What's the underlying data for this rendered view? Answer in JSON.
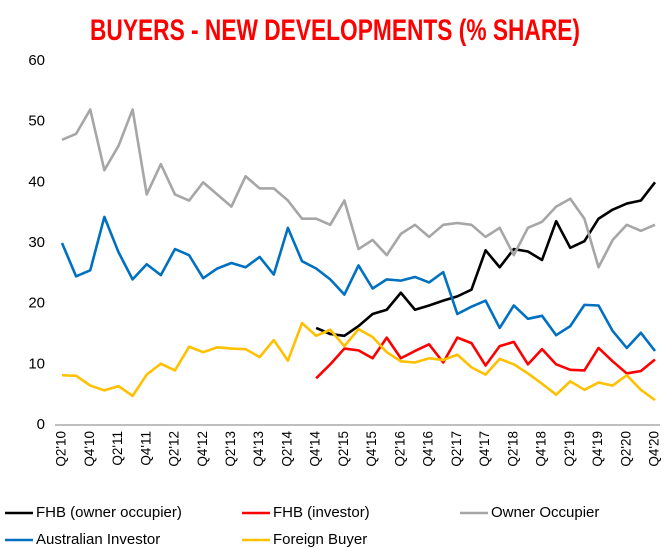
{
  "chart_data": {
    "type": "line",
    "title": "BUYERS - NEW DEVELOPMENTS (% SHARE)",
    "categories": [
      "Q2'10",
      null,
      "Q4'10",
      null,
      "Q2'11",
      null,
      "Q4'11",
      null,
      "Q2'12",
      null,
      "Q4'12",
      null,
      "Q2'13",
      null,
      "Q4'13",
      null,
      "Q2'14",
      null,
      "Q4'14",
      null,
      "Q2'15",
      null,
      "Q4'15",
      null,
      "Q2'16",
      null,
      "Q4'16",
      null,
      "Q2'17",
      null,
      "Q4'17",
      null,
      "Q2'18",
      null,
      "Q4'18",
      null,
      "Q2'19",
      null,
      "Q4'19",
      null,
      "Q2'20",
      null,
      "Q4'20"
    ],
    "series": [
      {
        "name": "FHB (owner occupier)",
        "color": "#000000",
        "values": [
          null,
          null,
          null,
          null,
          null,
          null,
          null,
          null,
          null,
          null,
          null,
          null,
          null,
          null,
          null,
          null,
          null,
          null,
          16,
          15,
          14.7,
          16.3,
          18.3,
          19,
          21.8,
          19,
          19.7,
          20.5,
          21.2,
          22.3,
          28.8,
          26,
          29,
          28.6,
          27.2,
          33.6,
          29.2,
          30.3,
          34,
          35.5,
          36.5,
          37,
          40
        ]
      },
      {
        "name": "FHB (investor)",
        "color": "#ff0000",
        "values": [
          null,
          null,
          null,
          null,
          null,
          null,
          null,
          null,
          null,
          null,
          null,
          null,
          null,
          null,
          null,
          null,
          null,
          null,
          7.7,
          10,
          12.6,
          12.3,
          11,
          14.4,
          11,
          12.2,
          13.3,
          10.3,
          14.4,
          13.5,
          9.8,
          13,
          13.7,
          10,
          12.5,
          10,
          9.1,
          9,
          12.7,
          10.5,
          8.5,
          8.9,
          10.8
        ]
      },
      {
        "name": "Owner Occupier",
        "color": "#a6a6a6",
        "values": [
          47,
          48,
          52,
          42,
          46,
          52,
          38,
          43,
          38,
          37,
          40,
          38,
          36,
          41,
          39,
          39,
          37,
          34,
          34,
          33,
          37,
          29,
          30.5,
          28,
          31.5,
          33,
          31,
          33,
          33.3,
          33,
          31,
          32.5,
          28,
          32.5,
          33.5,
          36,
          37.3,
          34,
          26,
          30.5,
          33,
          32,
          33
        ]
      },
      {
        "name": "Australian Investor",
        "color": "#0070c0",
        "values": [
          30,
          24.5,
          25.5,
          34.3,
          28.5,
          24,
          26.5,
          24.7,
          29,
          28,
          24.2,
          25.8,
          26.7,
          26,
          27.7,
          24.8,
          32.5,
          27,
          25.8,
          24,
          21.5,
          26.3,
          22.5,
          24,
          23.8,
          24.4,
          23.5,
          25.2,
          18.3,
          19.5,
          20.5,
          16,
          19.7,
          17.5,
          18,
          14.8,
          16.3,
          19.8,
          19.7,
          15.5,
          12.7,
          15.2,
          12.2
        ]
      },
      {
        "name": "Foreign Buyer",
        "color": "#ffc000",
        "values": [
          8.2,
          8.1,
          6.5,
          5.7,
          6.4,
          4.8,
          8.3,
          10.1,
          9,
          12.9,
          12,
          12.8,
          12.6,
          12.5,
          11.2,
          14,
          10.6,
          16.8,
          14.7,
          15.7,
          13,
          15.8,
          14.5,
          12,
          10.5,
          10.3,
          11,
          10.7,
          11.6,
          9.5,
          8.3,
          10.9,
          10,
          8.5,
          6.8,
          5,
          7.2,
          5.8,
          7,
          6.5,
          8.2,
          5.8,
          4.1
        ]
      }
    ],
    "ylim": [
      0,
      60
    ],
    "yticks": [
      0,
      10,
      20,
      30,
      40,
      50,
      60
    ],
    "grid": false
  }
}
